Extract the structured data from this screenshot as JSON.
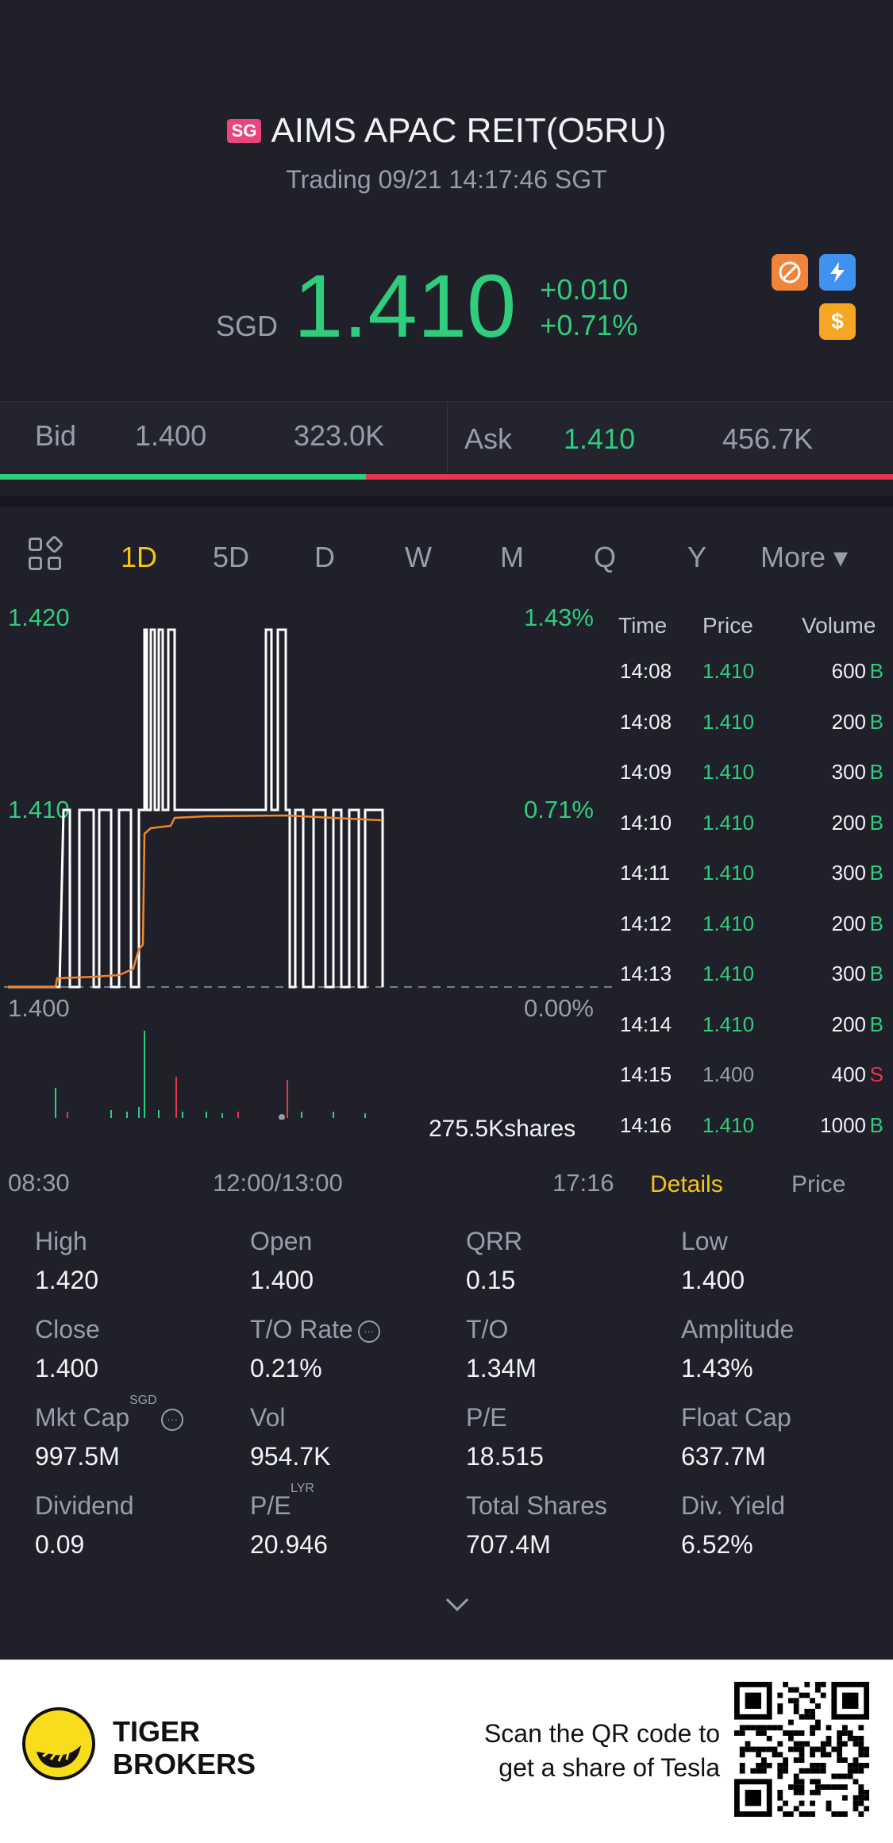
{
  "header": {
    "market_badge": "SG",
    "title": "AIMS APAC REIT(O5RU)",
    "subtitle": "Trading 09/21 14:17:46 SGT",
    "currency": "SGD",
    "price": "1.410",
    "change": "+0.010",
    "change_pct": "+0.71%",
    "icons": [
      "no-short-icon",
      "lightning-icon",
      "dollar-icon"
    ],
    "accent_up": "#2fcd7c",
    "accent_down": "#e5364d"
  },
  "bidask": {
    "bid_label": "Bid",
    "bid_price": "1.400",
    "bid_volume": "323.0K",
    "ask_label": "Ask",
    "ask_price": "1.410",
    "ask_volume": "456.7K",
    "bid_share": 0.41
  },
  "tabs": {
    "items": [
      "1D",
      "5D",
      "D",
      "W",
      "M",
      "Q",
      "Y",
      "More ▾"
    ],
    "active": "1D"
  },
  "chart_data": {
    "type": "line",
    "y_labels_left": [
      "1.420",
      "1.410",
      "1.400"
    ],
    "y_labels_right": [
      "1.43%",
      "0.71%",
      "0.00%"
    ],
    "x_labels": [
      "08:30",
      "12:00/13:00",
      "17:16"
    ],
    "ylim": [
      1.4,
      1.42
    ],
    "volume_label": "275.5Kshares",
    "series": [
      {
        "name": "price",
        "color": "#ffffff"
      },
      {
        "name": "avg",
        "color": "#f0872c"
      }
    ]
  },
  "trades": {
    "headers": {
      "time": "Time",
      "price": "Price",
      "volume": "Volume"
    },
    "rows": [
      {
        "time": "14:08",
        "price": "1.410",
        "vol": "600",
        "side": "B"
      },
      {
        "time": "14:08",
        "price": "1.410",
        "vol": "200",
        "side": "B"
      },
      {
        "time": "14:09",
        "price": "1.410",
        "vol": "300",
        "side": "B"
      },
      {
        "time": "14:10",
        "price": "1.410",
        "vol": "200",
        "side": "B"
      },
      {
        "time": "14:11",
        "price": "1.410",
        "vol": "300",
        "side": "B"
      },
      {
        "time": "14:12",
        "price": "1.410",
        "vol": "200",
        "side": "B"
      },
      {
        "time": "14:13",
        "price": "1.410",
        "vol": "300",
        "side": "B"
      },
      {
        "time": "14:14",
        "price": "1.410",
        "vol": "200",
        "side": "B"
      },
      {
        "time": "14:15",
        "price": "1.400",
        "vol": "400",
        "side": "S"
      },
      {
        "time": "14:16",
        "price": "1.410",
        "vol": "1000",
        "side": "B"
      }
    ]
  },
  "detail_tabs": {
    "details": "Details",
    "price": "Price"
  },
  "stats": [
    {
      "label": "High",
      "value": "1.420"
    },
    {
      "label": "Open",
      "value": "1.400"
    },
    {
      "label": "QRR",
      "value": "0.15"
    },
    {
      "label": "Low",
      "value": "1.400"
    },
    {
      "label": "Close",
      "value": "1.400"
    },
    {
      "label": "T/O Rate",
      "value": "0.21%"
    },
    {
      "label": "T/O",
      "value": "1.34M"
    },
    {
      "label": "Amplitude",
      "value": "1.43%"
    },
    {
      "label": "Mkt Cap",
      "value": "997.5M",
      "sup": "SGD"
    },
    {
      "label": "Vol",
      "value": "954.7K"
    },
    {
      "label": "P/E",
      "value": "18.515"
    },
    {
      "label": "Float Cap",
      "value": "637.7M"
    },
    {
      "label": "Dividend",
      "value": "0.09"
    },
    {
      "label": "P/E",
      "value": "20.946",
      "sup": "LYR"
    },
    {
      "label": "Total Shares",
      "value": "707.4M"
    },
    {
      "label": "Div. Yield",
      "value": "6.52%"
    }
  ],
  "footer": {
    "brand_line1": "TIGER",
    "brand_line2": "BROKERS",
    "scan_line1": "Scan the QR code to",
    "scan_line2": "get a share of Tesla"
  }
}
